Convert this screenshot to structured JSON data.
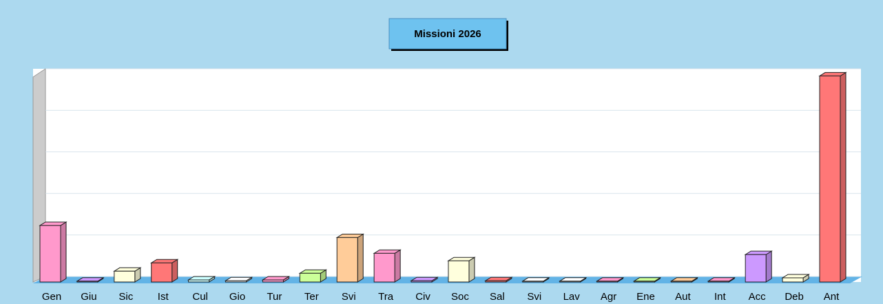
{
  "chart_data": {
    "type": "bar3d",
    "title": "Missioni 2026",
    "categories": [
      "Gen",
      "Giu",
      "Sic",
      "Ist",
      "Cul",
      "Gio",
      "Tur",
      "Ter",
      "Svi",
      "Tra",
      "Civ",
      "Soc",
      "Sal",
      "Svi",
      "Lav",
      "Agr",
      "Ene",
      "Aut",
      "Int",
      "Acc",
      "Deb",
      "Ant"
    ],
    "values": [
      1.36,
      0.02,
      0.26,
      0.46,
      0.05,
      0.03,
      0.05,
      0.21,
      1.07,
      0.69,
      0.03,
      0.51,
      0.03,
      0.02,
      0.02,
      0.02,
      0.02,
      0.02,
      0.02,
      0.66,
      0.1,
      4.96
    ],
    "colors": [
      "#ff99cc",
      "#cc99ff",
      "#ffffdd",
      "#ff7777",
      "#ccffff",
      "#ffffff",
      "#ff99cc",
      "#ccff99",
      "#ffcc99",
      "#ff99cc",
      "#cc99ff",
      "#ffffdd",
      "#ff7777",
      "#ffffff",
      "#ffffff",
      "#ff99cc",
      "#ccff99",
      "#ffcc99",
      "#ff99cc",
      "#cc99ff",
      "#ffffdd",
      "#ff7777"
    ],
    "ylim": [
      0,
      5
    ],
    "yticks": [
      0,
      1,
      2,
      3,
      4,
      5
    ],
    "grid": true
  }
}
